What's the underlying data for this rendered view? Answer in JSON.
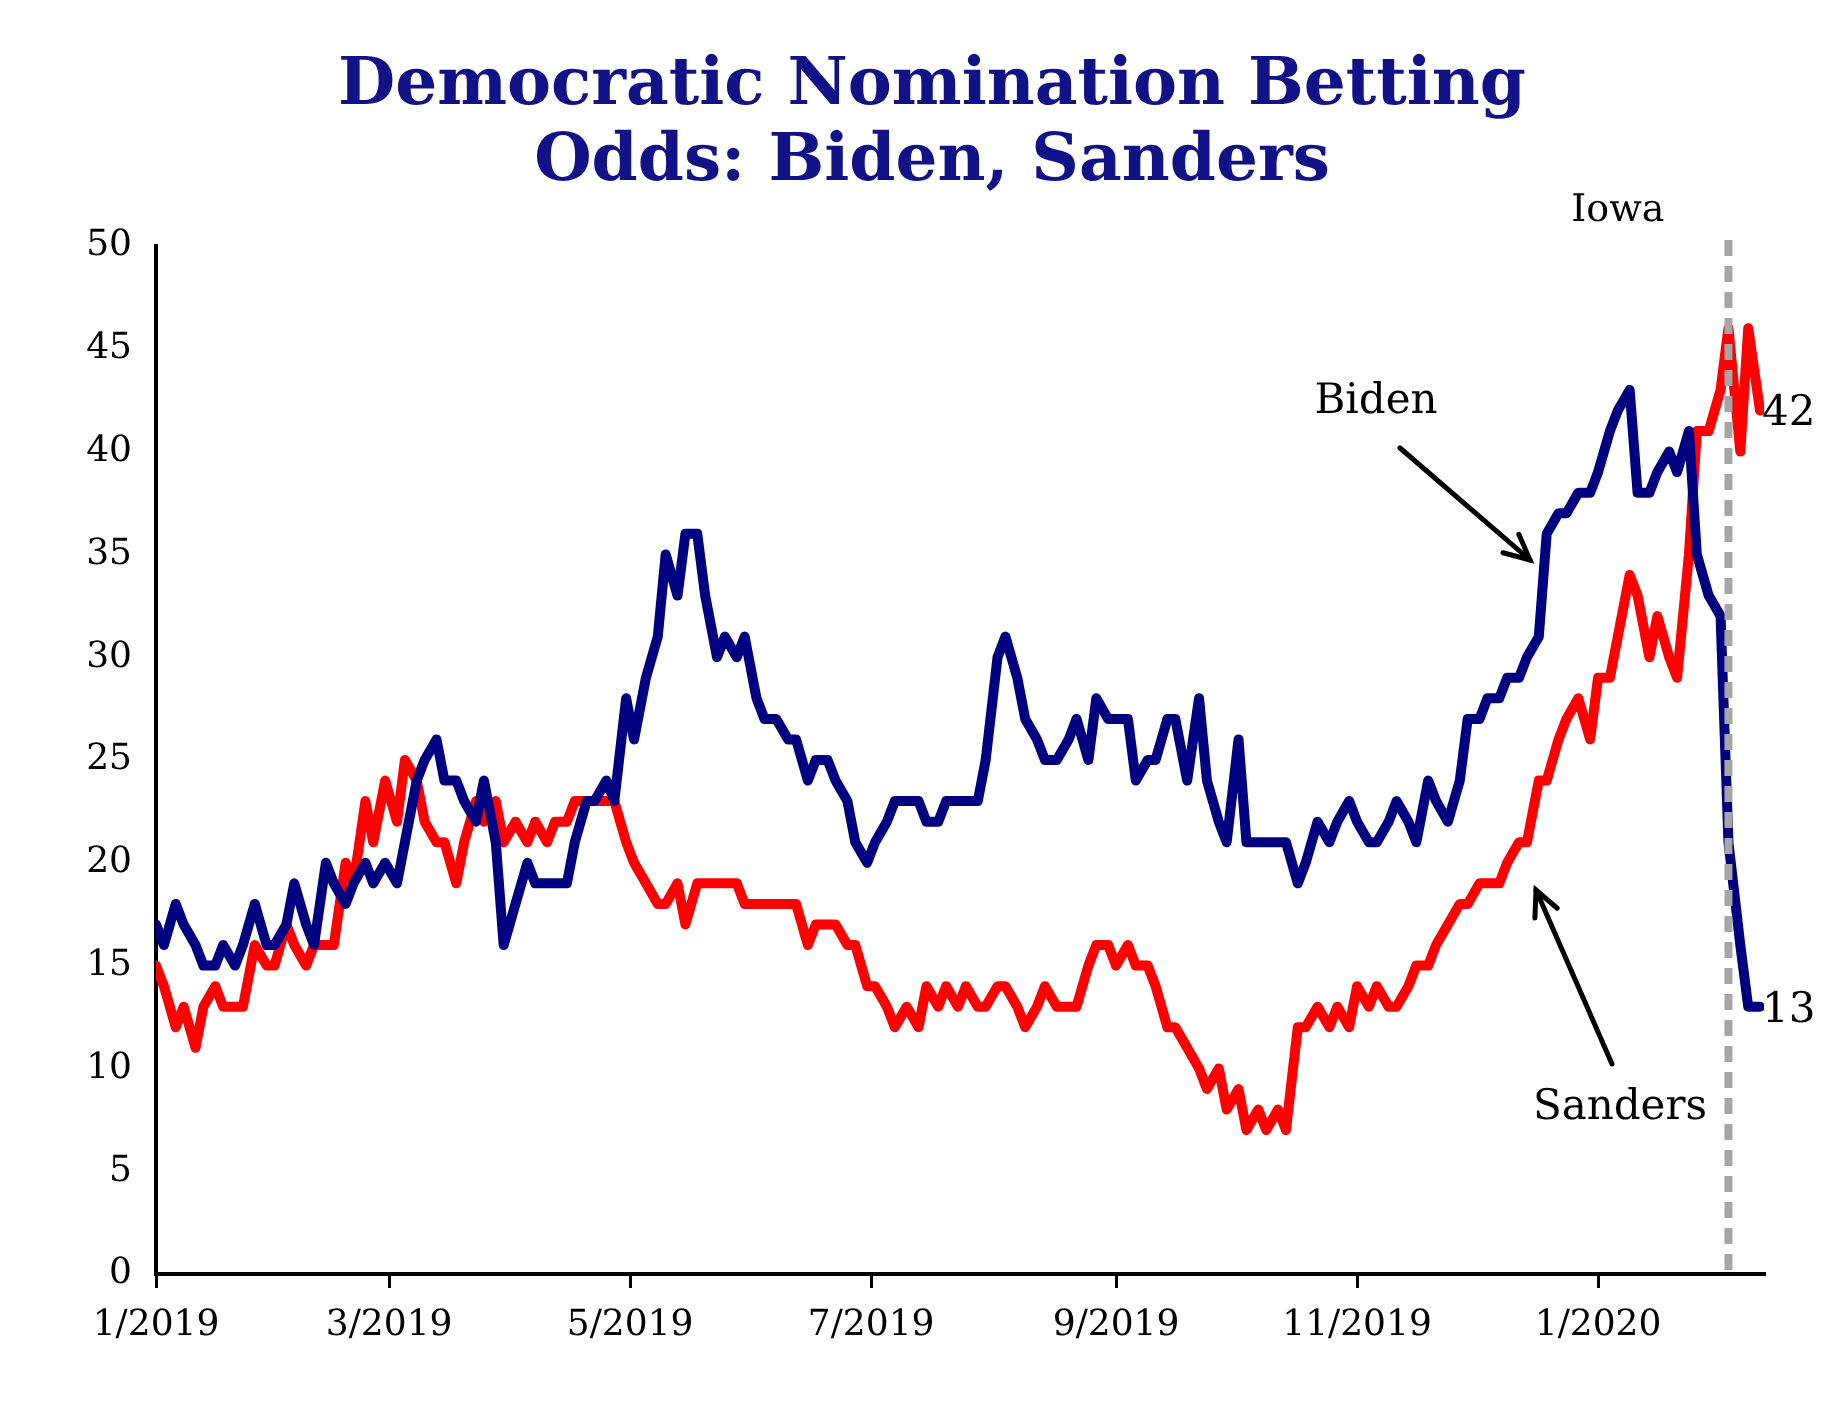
{
  "chart_data": {
    "type": "line",
    "title": "Democratic Nomination Betting Odds: Biden, Sanders",
    "x": [
      "2019-01-01",
      "2019-01-03",
      "2019-01-06",
      "2019-01-08",
      "2019-01-11",
      "2019-01-13",
      "2019-01-16",
      "2019-01-18",
      "2019-01-21",
      "2019-01-23",
      "2019-01-26",
      "2019-01-29",
      "2019-01-31",
      "2019-02-03",
      "2019-02-05",
      "2019-02-08",
      "2019-02-10",
      "2019-02-13",
      "2019-02-15",
      "2019-02-18",
      "2019-02-20",
      "2019-02-23",
      "2019-02-25",
      "2019-02-28",
      "2019-03-03",
      "2019-03-05",
      "2019-03-08",
      "2019-03-10",
      "2019-03-13",
      "2019-03-15",
      "2019-03-18",
      "2019-03-20",
      "2019-03-23",
      "2019-03-25",
      "2019-03-28",
      "2019-03-30",
      "2019-04-02",
      "2019-04-05",
      "2019-04-07",
      "2019-04-10",
      "2019-04-12",
      "2019-04-15",
      "2019-04-17",
      "2019-04-20",
      "2019-04-22",
      "2019-04-25",
      "2019-04-27",
      "2019-04-30",
      "2019-05-02",
      "2019-05-05",
      "2019-05-08",
      "2019-05-10",
      "2019-05-13",
      "2019-05-15",
      "2019-05-18",
      "2019-05-20",
      "2019-05-23",
      "2019-05-25",
      "2019-05-28",
      "2019-05-30",
      "2019-06-02",
      "2019-06-04",
      "2019-06-07",
      "2019-06-10",
      "2019-06-12",
      "2019-06-15",
      "2019-06-17",
      "2019-06-20",
      "2019-06-22",
      "2019-06-25",
      "2019-06-27",
      "2019-06-30",
      "2019-07-02",
      "2019-07-05",
      "2019-07-07",
      "2019-07-10",
      "2019-07-13",
      "2019-07-15",
      "2019-07-18",
      "2019-07-20",
      "2019-07-23",
      "2019-07-25",
      "2019-07-28",
      "2019-07-30",
      "2019-08-02",
      "2019-08-04",
      "2019-08-07",
      "2019-08-09",
      "2019-08-12",
      "2019-08-14",
      "2019-08-17",
      "2019-08-20",
      "2019-08-22",
      "2019-08-25",
      "2019-08-27",
      "2019-08-30",
      "2019-09-01",
      "2019-09-04",
      "2019-09-06",
      "2019-09-09",
      "2019-09-11",
      "2019-09-14",
      "2019-09-16",
      "2019-09-19",
      "2019-09-22",
      "2019-09-24",
      "2019-09-27",
      "2019-09-29",
      "2019-10-02",
      "2019-10-04",
      "2019-10-07",
      "2019-10-09",
      "2019-10-12",
      "2019-10-14",
      "2019-10-17",
      "2019-10-19",
      "2019-10-22",
      "2019-10-25",
      "2019-10-27",
      "2019-10-30",
      "2019-11-01",
      "2019-11-04",
      "2019-11-06",
      "2019-11-09",
      "2019-11-11",
      "2019-11-14",
      "2019-11-16",
      "2019-11-19",
      "2019-11-21",
      "2019-11-24",
      "2019-11-27",
      "2019-11-29",
      "2019-12-02",
      "2019-12-04",
      "2019-12-07",
      "2019-12-09",
      "2019-12-12",
      "2019-12-14",
      "2019-12-17",
      "2019-12-19",
      "2019-12-22",
      "2019-12-24",
      "2019-12-27",
      "2019-12-30",
      "2020-01-01",
      "2020-01-04",
      "2020-01-06",
      "2020-01-09",
      "2020-01-11",
      "2020-01-14",
      "2020-01-16",
      "2020-01-19",
      "2020-01-21",
      "2020-01-24",
      "2020-01-26",
      "2020-01-29",
      "2020-02-01",
      "2020-02-03",
      "2020-02-06",
      "2020-02-08",
      "2020-02-11"
    ],
    "series": [
      {
        "color": "#000080",
        "values": [
          17,
          16,
          18,
          17,
          16,
          15,
          15,
          16,
          15,
          16,
          18,
          16,
          16,
          17,
          19,
          17,
          16,
          20,
          19,
          18,
          19,
          20,
          19,
          20,
          19,
          21,
          24,
          25,
          26,
          24,
          24,
          23,
          22,
          24,
          21,
          16,
          18,
          20,
          19,
          19,
          19,
          19,
          21,
          23,
          23,
          24,
          23,
          28,
          26,
          29,
          31,
          35,
          33,
          36,
          36,
          33,
          30,
          31,
          30,
          31,
          28,
          27,
          27,
          26,
          26,
          24,
          25,
          25,
          24,
          23,
          21,
          20,
          21,
          22,
          23,
          23,
          23,
          22,
          22,
          23,
          23,
          23,
          23,
          25,
          30,
          31,
          29,
          27,
          26,
          25,
          25,
          26,
          27,
          25,
          28,
          27,
          27,
          27,
          24,
          25,
          25,
          27,
          27,
          24,
          28,
          24,
          22,
          21,
          26,
          21,
          21,
          21,
          21,
          21,
          19,
          20,
          22,
          21,
          22,
          23,
          22,
          21,
          21,
          22,
          23,
          22,
          21,
          24,
          23,
          22,
          24,
          27,
          27,
          28,
          28,
          29,
          29,
          30,
          31,
          36,
          37,
          37,
          38,
          38,
          39,
          41,
          42,
          43,
          38,
          38,
          39,
          40,
          39,
          41,
          35,
          33,
          32,
          21,
          16,
          13,
          13
        ],
        "value_labels": [
          null,
          null,
          null,
          null,
          null,
          null,
          null,
          null,
          null,
          null,
          null,
          null,
          null,
          null,
          null,
          null,
          null,
          null,
          null,
          null,
          null,
          null,
          null,
          null,
          null,
          null,
          null,
          null,
          null,
          null,
          null,
          null,
          null,
          null,
          null,
          null,
          null,
          null,
          null,
          null,
          null,
          null,
          null,
          null,
          null,
          null,
          null,
          null,
          null,
          null,
          null,
          null,
          null,
          null,
          null,
          null,
          null,
          null,
          null,
          null,
          null,
          null,
          null,
          null,
          null,
          null,
          null,
          null,
          null,
          null,
          null,
          null,
          null,
          null,
          null,
          null,
          null,
          null,
          null,
          null,
          null,
          null,
          null,
          null,
          null,
          null,
          null,
          null,
          null,
          null,
          null,
          null,
          null,
          null,
          null,
          null,
          null,
          null,
          null,
          null,
          null,
          null,
          null,
          null,
          null,
          null,
          null,
          null,
          null,
          null,
          null,
          null,
          null,
          null,
          null,
          null,
          null,
          null,
          null,
          null,
          null,
          null,
          null,
          null,
          null,
          null,
          null,
          null,
          null,
          null,
          null,
          null,
          null,
          null,
          null,
          null,
          null,
          null,
          null,
          null,
          null,
          null,
          null,
          null,
          null,
          null,
          null,
          null,
          null,
          null,
          null,
          null,
          null,
          null,
          null,
          null,
          null,
          null,
          null,
          null,
          "13"
        ]
      },
      {
        "color": "#ff0000",
        "values": [
          15,
          14,
          12,
          13,
          11,
          13,
          14,
          13,
          13,
          13,
          16,
          15,
          15,
          17,
          16,
          15,
          16,
          16,
          16,
          20,
          19,
          23,
          21,
          24,
          22,
          25,
          24,
          22,
          21,
          21,
          19,
          21,
          23,
          22,
          23,
          21,
          22,
          21,
          22,
          21,
          22,
          22,
          23,
          23,
          23,
          23,
          23,
          21,
          20,
          19,
          18,
          18,
          19,
          17,
          19,
          19,
          19,
          19,
          19,
          18,
          18,
          18,
          18,
          18,
          18,
          16,
          17,
          17,
          17,
          16,
          16,
          14,
          14,
          13,
          12,
          13,
          12,
          14,
          13,
          14,
          13,
          14,
          13,
          13,
          14,
          14,
          13,
          12,
          13,
          14,
          13,
          13,
          13,
          15,
          16,
          16,
          15,
          16,
          15,
          15,
          14,
          12,
          12,
          11,
          10,
          9,
          10,
          8,
          9,
          7,
          8,
          7,
          8,
          7,
          12,
          12,
          13,
          12,
          13,
          12,
          14,
          13,
          14,
          13,
          13,
          14,
          15,
          15,
          16,
          17,
          18,
          18,
          19,
          19,
          19,
          20,
          21,
          21,
          24,
          24,
          26,
          27,
          28,
          26,
          29,
          29,
          31,
          34,
          33,
          30,
          32,
          30,
          29,
          35,
          41,
          41,
          43,
          46,
          40,
          46,
          42
        ],
        "value_labels": [
          null,
          null,
          null,
          null,
          null,
          null,
          null,
          null,
          null,
          null,
          null,
          null,
          null,
          null,
          null,
          null,
          null,
          null,
          null,
          null,
          null,
          null,
          null,
          null,
          null,
          null,
          null,
          null,
          null,
          null,
          null,
          null,
          null,
          null,
          null,
          null,
          null,
          null,
          null,
          null,
          null,
          null,
          null,
          null,
          null,
          null,
          null,
          null,
          null,
          null,
          null,
          null,
          null,
          null,
          null,
          null,
          null,
          null,
          null,
          null,
          null,
          null,
          null,
          null,
          null,
          null,
          null,
          null,
          null,
          null,
          null,
          null,
          null,
          null,
          null,
          null,
          null,
          null,
          null,
          null,
          null,
          null,
          null,
          null,
          null,
          null,
          null,
          null,
          null,
          null,
          null,
          null,
          null,
          null,
          null,
          null,
          null,
          null,
          null,
          null,
          null,
          null,
          null,
          null,
          null,
          null,
          null,
          null,
          null,
          null,
          null,
          null,
          null,
          null,
          null,
          null,
          null,
          null,
          null,
          null,
          null,
          null,
          null,
          null,
          null,
          null,
          null,
          null,
          null,
          null,
          null,
          null,
          null,
          null,
          null,
          null,
          null,
          null,
          null,
          null,
          null,
          null,
          null,
          null,
          null,
          null,
          null,
          null,
          null,
          null,
          null,
          null,
          null,
          null,
          null,
          null,
          null,
          null,
          null,
          null,
          "42"
        ]
      }
    ],
    "xlim": [
      "2019-01-01",
      "2020-02-12"
    ],
    "xticks": [
      {
        "value": "2019-01-01",
        "label": "1/2019"
      },
      {
        "value": "2019-03-01",
        "label": "3/2019"
      },
      {
        "value": "2019-05-01",
        "label": "5/2019"
      },
      {
        "value": "2019-07-01",
        "label": "7/2019"
      },
      {
        "value": "2019-09-01",
        "label": "9/2019"
      },
      {
        "value": "2019-11-01",
        "label": "11/2019"
      },
      {
        "value": "2020-01-01",
        "label": "1/2020"
      }
    ],
    "ylim": [
      0,
      50
    ],
    "yticks": [
      0,
      5,
      10,
      15,
      20,
      25,
      30,
      35,
      40,
      45,
      50
    ],
    "grid": false,
    "legend": false,
    "marker": "none",
    "line_style": "solid",
    "ref_lines": [
      {
        "axis": "x",
        "value": "2020-02-03",
        "label": "Iowa",
        "color": "#a6a6a6",
        "line_style": "dashed"
      }
    ],
    "annotations": [
      "Biden",
      "Sanders"
    ]
  }
}
